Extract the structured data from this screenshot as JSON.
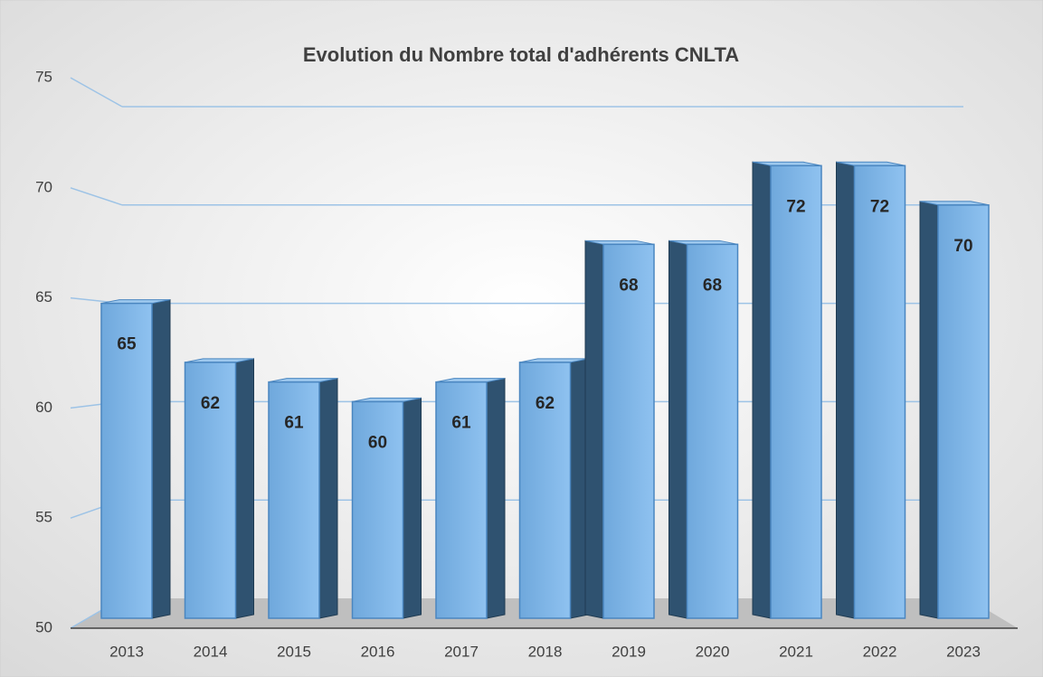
{
  "chart_data": {
    "type": "bar",
    "title": "Evolution du Nombre total d'adhérents CNLTA",
    "categories": [
      "2013",
      "2014",
      "2015",
      "2016",
      "2017",
      "2018",
      "2019",
      "2020",
      "2021",
      "2022",
      "2023"
    ],
    "values": [
      65,
      62,
      61,
      60,
      61,
      62,
      68,
      68,
      72,
      72,
      70
    ],
    "color": "#5b9bd5",
    "ylim": [
      50,
      75
    ],
    "yticks": [
      50,
      55,
      60,
      65,
      70,
      75
    ],
    "grid": true
  }
}
